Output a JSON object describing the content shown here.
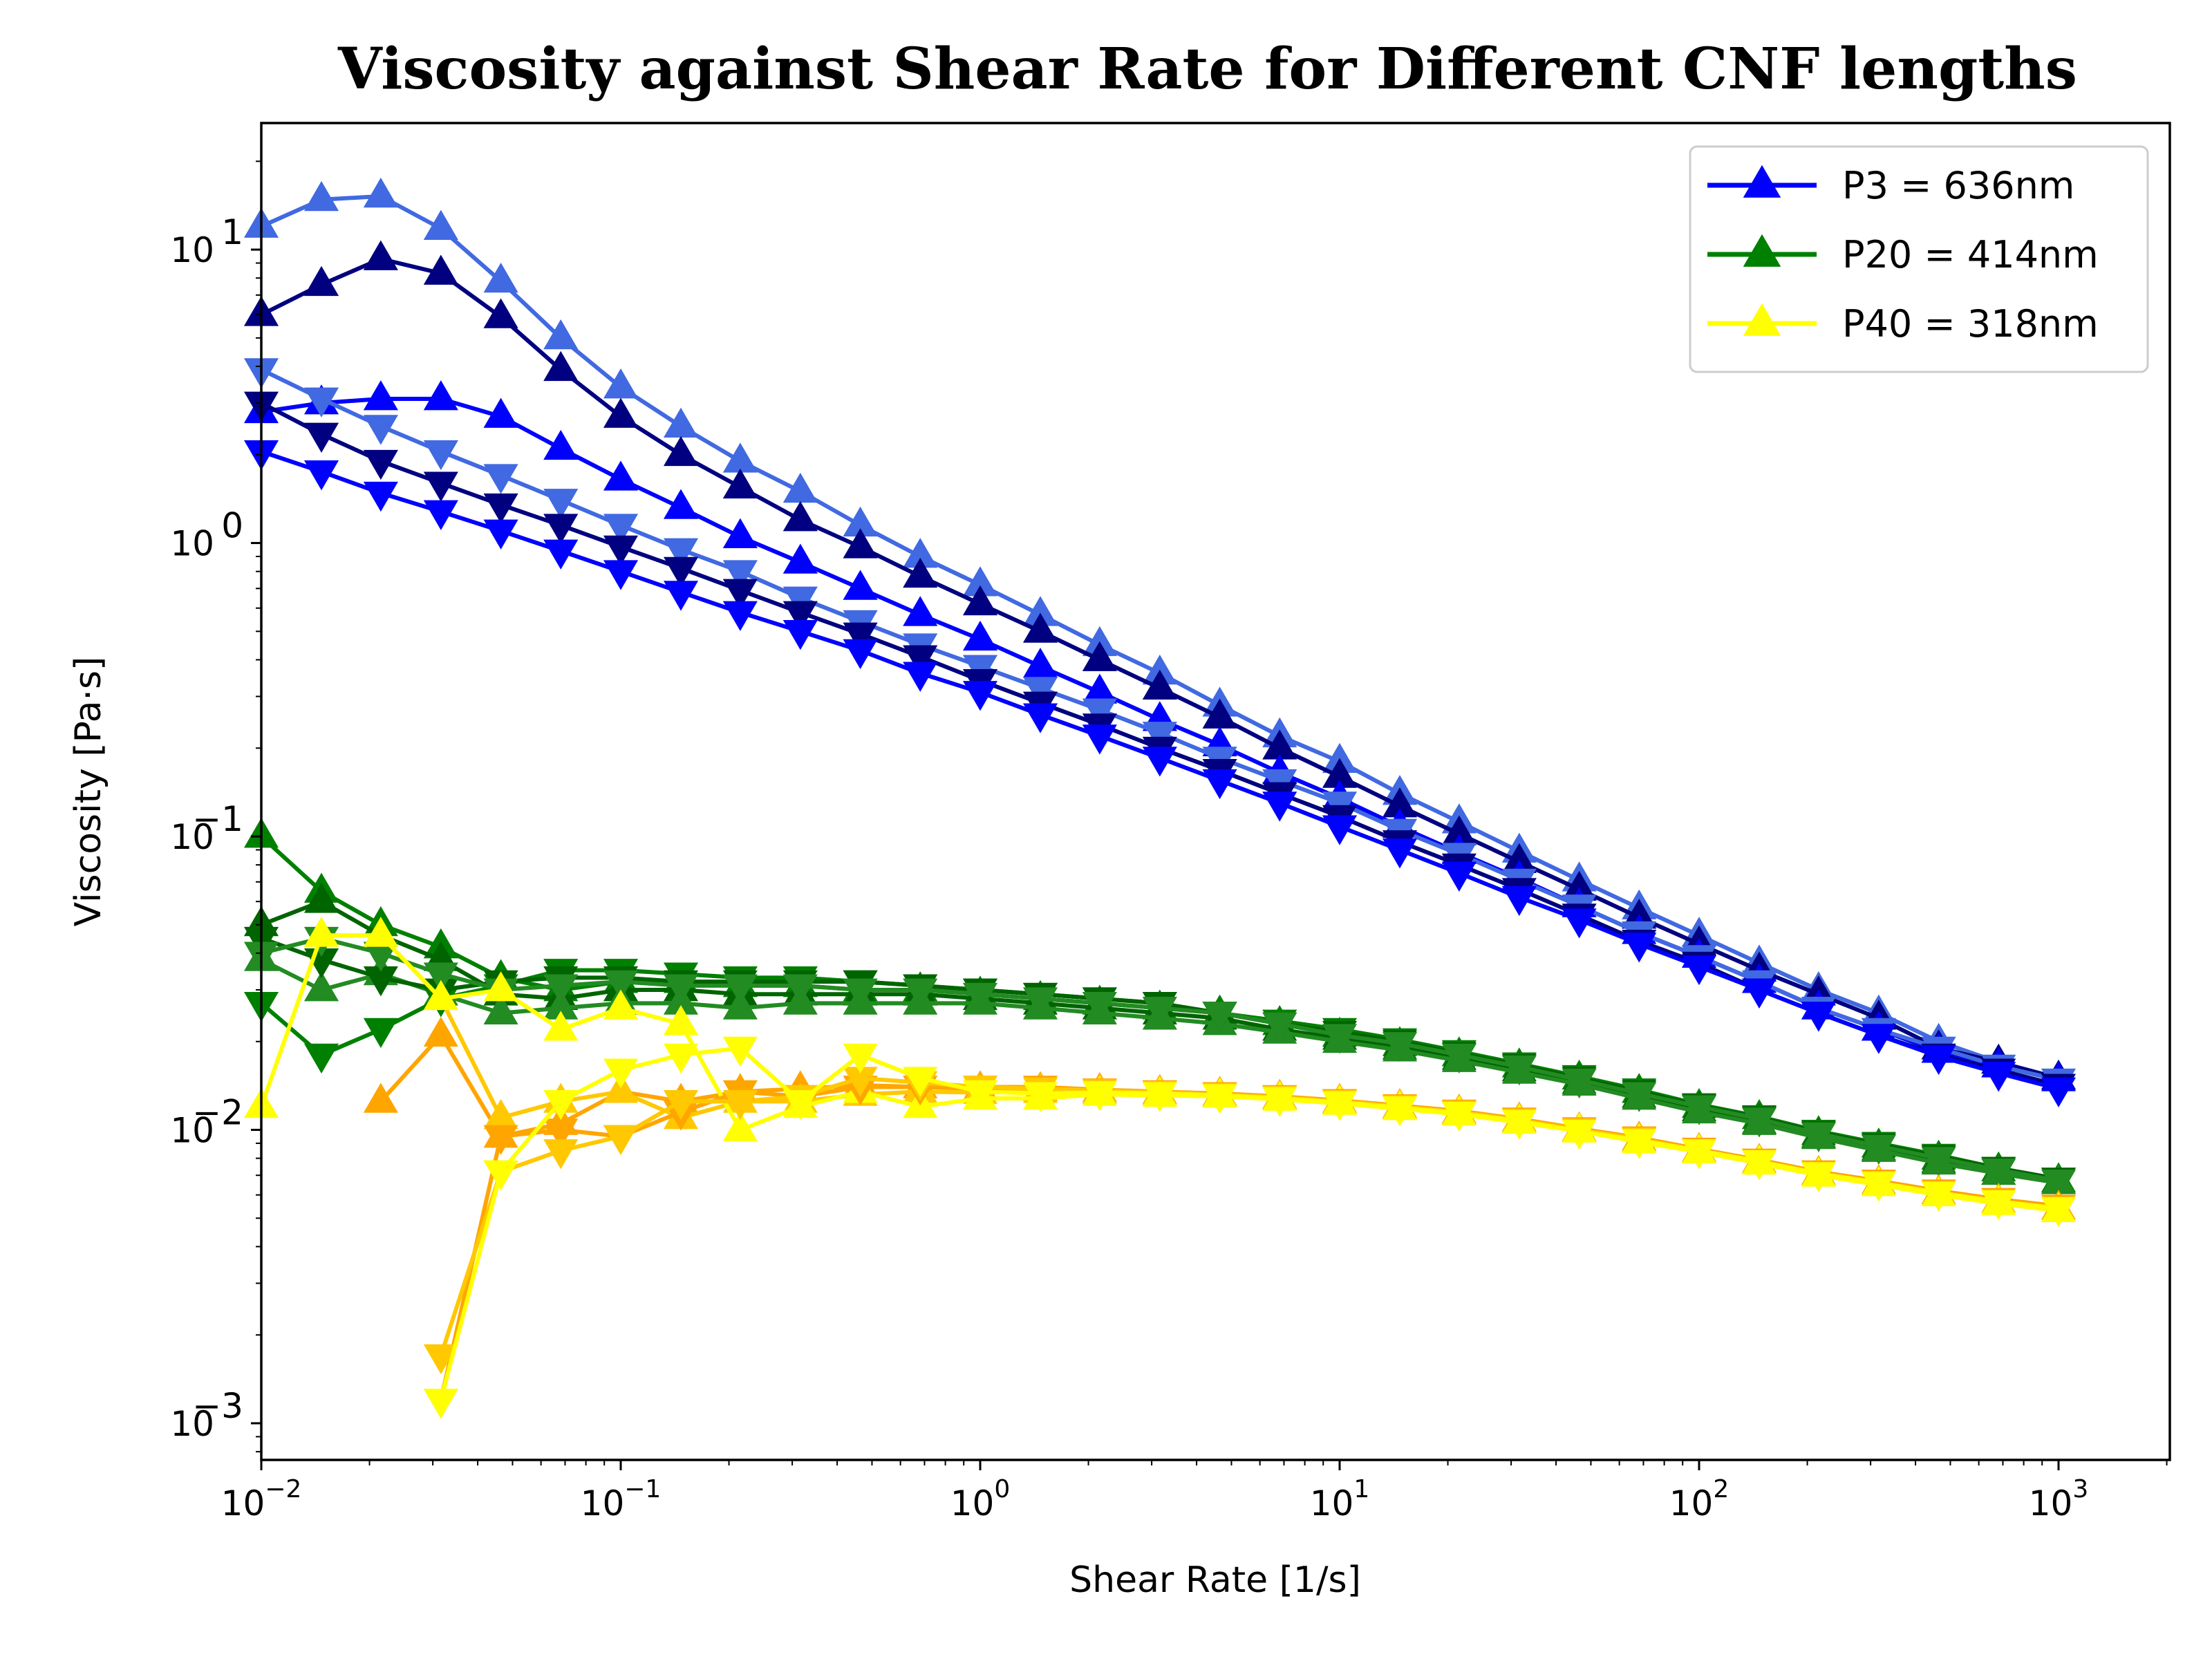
{
  "chart_data": {
    "type": "line",
    "title": "Viscosity against Shear Rate for Different CNF lengths",
    "xlabel": "Shear Rate [1/s]",
    "ylabel": "Viscosity [Pa·s]",
    "xscale": "log",
    "yscale": "log",
    "xlim": [
      0.01,
      2000
    ],
    "ylim": [
      0.00075,
      27
    ],
    "x_ticks": [
      {
        "value": 0.01,
        "base": "10",
        "exp": "−2"
      },
      {
        "value": 0.1,
        "base": "10",
        "exp": "−1"
      },
      {
        "value": 1,
        "base": "10",
        "exp": "0"
      },
      {
        "value": 10,
        "base": "10",
        "exp": "1"
      },
      {
        "value": 100,
        "base": "10",
        "exp": "2"
      },
      {
        "value": 1000,
        "base": "10",
        "exp": "3"
      }
    ],
    "y_ticks": [
      {
        "value": 0.001,
        "base": "10",
        "exp": "−3"
      },
      {
        "value": 0.01,
        "base": "10",
        "exp": "−2"
      },
      {
        "value": 0.1,
        "base": "10",
        "exp": "−1"
      },
      {
        "value": 1,
        "base": "10",
        "exp": "0"
      },
      {
        "value": 10,
        "base": "10",
        "exp": "1"
      }
    ],
    "grid": false,
    "legend_position": "top-right",
    "legend": [
      {
        "label": "P3 = 636nm",
        "color": "#0000ff",
        "marker": "triangle-up"
      },
      {
        "label": "P20 = 414nm",
        "color": "#008000",
        "marker": "triangle-up"
      },
      {
        "label": "P40 = 318nm",
        "color": "#ffff00",
        "marker": "triangle-up"
      }
    ],
    "x": [
      0.01,
      0.0147,
      0.0215,
      0.0316,
      0.0464,
      0.0681,
      0.1,
      0.147,
      0.215,
      0.316,
      0.464,
      0.681,
      1,
      1.47,
      2.15,
      3.16,
      4.64,
      6.81,
      10,
      14.7,
      21.5,
      31.6,
      46.4,
      68.1,
      100,
      147,
      215,
      316,
      464,
      681,
      1000
    ],
    "series": [
      {
        "group": "P3",
        "color": "#4169e1",
        "marker": "up",
        "values": [
          12,
          14.8,
          15.2,
          11.8,
          7.8,
          5,
          3.4,
          2.5,
          1.9,
          1.5,
          1.15,
          0.9,
          0.72,
          0.57,
          0.45,
          0.36,
          0.28,
          0.22,
          0.18,
          0.14,
          0.112,
          0.089,
          0.071,
          0.057,
          0.046,
          0.037,
          0.03,
          0.025,
          0.02,
          0.017,
          0.015
        ]
      },
      {
        "group": "P3",
        "color": "#000080",
        "marker": "up",
        "values": [
          6,
          7.6,
          9.3,
          8.3,
          5.9,
          3.9,
          2.7,
          2,
          1.55,
          1.2,
          0.97,
          0.77,
          0.62,
          0.5,
          0.4,
          0.32,
          0.255,
          0.2,
          0.16,
          0.127,
          0.102,
          0.082,
          0.066,
          0.053,
          0.043,
          0.035,
          0.029,
          0.024,
          0.019,
          0.017,
          0.015
        ]
      },
      {
        "group": "P3",
        "color": "#0000ff",
        "marker": "up",
        "values": [
          2.8,
          3,
          3.1,
          3.1,
          2.7,
          2.1,
          1.65,
          1.32,
          1.05,
          0.86,
          0.7,
          0.57,
          0.47,
          0.38,
          0.31,
          0.25,
          0.205,
          0.165,
          0.135,
          0.108,
          0.088,
          0.072,
          0.058,
          0.047,
          0.039,
          0.032,
          0.026,
          0.022,
          0.0185,
          0.0165,
          0.0148
        ]
      },
      {
        "group": "P3",
        "color": "#4169e1",
        "marker": "down",
        "values": [
          3.9,
          3.1,
          2.5,
          2.05,
          1.7,
          1.4,
          1.15,
          0.95,
          0.8,
          0.65,
          0.54,
          0.45,
          0.38,
          0.32,
          0.27,
          0.225,
          0.185,
          0.155,
          0.13,
          0.105,
          0.087,
          0.071,
          0.058,
          0.047,
          0.039,
          0.032,
          0.026,
          0.022,
          0.019,
          0.0165,
          0.0148
        ]
      },
      {
        "group": "P3",
        "color": "#000080",
        "marker": "down",
        "values": [
          3,
          2.35,
          1.9,
          1.6,
          1.35,
          1.15,
          0.97,
          0.82,
          0.69,
          0.58,
          0.49,
          0.41,
          0.34,
          0.285,
          0.24,
          0.2,
          0.168,
          0.14,
          0.117,
          0.096,
          0.08,
          0.066,
          0.054,
          0.044,
          0.037,
          0.03,
          0.025,
          0.021,
          0.018,
          0.016,
          0.0142
        ]
      },
      {
        "group": "P3",
        "color": "#0000ff",
        "marker": "down",
        "values": [
          2.05,
          1.75,
          1.48,
          1.28,
          1.1,
          0.94,
          0.8,
          0.68,
          0.58,
          0.5,
          0.43,
          0.36,
          0.31,
          0.26,
          0.22,
          0.185,
          0.155,
          0.13,
          0.108,
          0.09,
          0.075,
          0.062,
          0.052,
          0.043,
          0.036,
          0.03,
          0.025,
          0.021,
          0.0178,
          0.0156,
          0.0138
        ]
      },
      {
        "group": "P20",
        "color": "#008000",
        "marker": "up",
        "values": [
          0.1,
          0.065,
          0.05,
          0.042,
          0.033,
          0.03,
          0.032,
          0.032,
          0.031,
          0.031,
          0.03,
          0.03,
          0.029,
          0.028,
          0.027,
          0.026,
          0.025,
          0.023,
          0.021,
          0.0195,
          0.018,
          0.0165,
          0.015,
          0.0135,
          0.012,
          0.011,
          0.0097,
          0.0088,
          0.008,
          0.0073,
          0.0067
        ]
      },
      {
        "group": "P20",
        "color": "#006400",
        "marker": "up",
        "values": [
          0.05,
          0.06,
          0.046,
          0.038,
          0.029,
          0.028,
          0.03,
          0.03,
          0.029,
          0.029,
          0.029,
          0.029,
          0.028,
          0.027,
          0.026,
          0.025,
          0.024,
          0.022,
          0.0205,
          0.019,
          0.0175,
          0.016,
          0.0145,
          0.013,
          0.0117,
          0.0106,
          0.0095,
          0.0086,
          0.0078,
          0.0071,
          0.0066
        ]
      },
      {
        "group": "P20",
        "color": "#228b22",
        "marker": "up",
        "values": [
          0.038,
          0.03,
          0.034,
          0.029,
          0.025,
          0.026,
          0.027,
          0.027,
          0.026,
          0.027,
          0.027,
          0.027,
          0.027,
          0.026,
          0.025,
          0.024,
          0.023,
          0.0215,
          0.02,
          0.0187,
          0.0172,
          0.0157,
          0.0143,
          0.0128,
          0.0115,
          0.0105,
          0.0094,
          0.0085,
          0.0077,
          0.0071,
          0.0066
        ]
      },
      {
        "group": "P20",
        "color": "#008000",
        "marker": "down",
        "values": [
          0.027,
          0.018,
          0.022,
          0.028,
          0.031,
          0.035,
          0.035,
          0.034,
          0.033,
          0.033,
          0.032,
          0.031,
          0.03,
          0.029,
          0.028,
          0.027,
          0.025,
          0.0235,
          0.022,
          0.0203,
          0.0185,
          0.0168,
          0.0152,
          0.0137,
          0.0122,
          0.0111,
          0.0099,
          0.009,
          0.0082,
          0.0074,
          0.0068
        ]
      },
      {
        "group": "P20",
        "color": "#006400",
        "marker": "down",
        "values": [
          0.045,
          0.038,
          0.033,
          0.03,
          0.032,
          0.033,
          0.033,
          0.032,
          0.032,
          0.032,
          0.032,
          0.031,
          0.03,
          0.029,
          0.028,
          0.027,
          0.025,
          0.023,
          0.0215,
          0.02,
          0.0182,
          0.0166,
          0.015,
          0.0135,
          0.0121,
          0.011,
          0.0098,
          0.0089,
          0.0081,
          0.0074,
          0.0068
        ]
      },
      {
        "group": "P20",
        "color": "#228b22",
        "marker": "down",
        "values": [
          0.04,
          0.045,
          0.04,
          0.034,
          0.03,
          0.031,
          0.032,
          0.031,
          0.031,
          0.031,
          0.03,
          0.03,
          0.029,
          0.028,
          0.027,
          0.026,
          0.025,
          0.023,
          0.021,
          0.0197,
          0.018,
          0.0164,
          0.0148,
          0.0133,
          0.012,
          0.0109,
          0.0097,
          0.0088,
          0.008,
          0.0073,
          0.0067
        ]
      },
      {
        "group": "P40",
        "color": "#ffa500",
        "marker": "up",
        "values": [
          null,
          null,
          0.0125,
          0.021,
          0.0095,
          0.0105,
          0.0135,
          0.0125,
          0.0135,
          0.0138,
          0.0142,
          0.014,
          0.0138,
          0.0137,
          0.0136,
          0.0134,
          0.0132,
          0.0129,
          0.0125,
          0.012,
          0.0115,
          0.0108,
          0.01,
          0.0093,
          0.0085,
          0.0078,
          0.0071,
          0.0066,
          0.0061,
          0.0057,
          0.0054
        ]
      },
      {
        "group": "P40",
        "color": "#ffc800",
        "marker": "up",
        "values": [
          null,
          0.046,
          0.046,
          0.028,
          0.011,
          0.0125,
          0.0135,
          0.011,
          0.0125,
          0.0125,
          0.0132,
          0.0135,
          0.0134,
          0.0135,
          0.0134,
          0.0133,
          0.0131,
          0.0128,
          0.0124,
          0.0119,
          0.0114,
          0.0107,
          0.0099,
          0.0092,
          0.0084,
          0.0077,
          0.007,
          0.0065,
          0.006,
          0.0057,
          0.0053
        ]
      },
      {
        "group": "P40",
        "color": "#ffff00",
        "marker": "up",
        "values": [
          0.012,
          0.046,
          0.046,
          0.028,
          0.03,
          0.022,
          0.026,
          0.023,
          0.01,
          0.012,
          0.0135,
          0.012,
          0.0128,
          0.0128,
          0.0132,
          0.0131,
          0.013,
          0.0127,
          0.0123,
          0.0118,
          0.0113,
          0.0106,
          0.0099,
          0.0091,
          0.0084,
          0.0077,
          0.007,
          0.0065,
          0.006,
          0.0056,
          0.0053
        ]
      },
      {
        "group": "P40",
        "color": "#ffa500",
        "marker": "down",
        "values": [
          null,
          null,
          null,
          0.0012,
          0.0095,
          0.01,
          0.0095,
          0.0115,
          0.0135,
          0.013,
          0.014,
          0.014,
          0.014,
          0.014,
          0.0137,
          0.0135,
          0.0133,
          0.013,
          0.0126,
          0.0121,
          0.0116,
          0.0109,
          0.0101,
          0.0094,
          0.0086,
          0.0079,
          0.0072,
          0.0067,
          0.0062,
          0.0058,
          0.0055
        ]
      },
      {
        "group": "P40",
        "color": "#ffc800",
        "marker": "down",
        "values": [
          null,
          null,
          null,
          0.0017,
          0.0072,
          0.0085,
          0.0095,
          0.0125,
          0.0125,
          0.013,
          0.015,
          0.0145,
          0.014,
          0.0138,
          0.0136,
          0.0134,
          0.0132,
          0.0129,
          0.0125,
          0.012,
          0.0115,
          0.0108,
          0.01,
          0.0093,
          0.0085,
          0.0078,
          0.0071,
          0.0066,
          0.0061,
          0.0057,
          0.0054
        ]
      },
      {
        "group": "P40",
        "color": "#ffff00",
        "marker": "down",
        "values": [
          null,
          null,
          null,
          0.0012,
          0.0072,
          0.0125,
          0.016,
          0.018,
          0.019,
          0.0125,
          0.018,
          0.015,
          0.0135,
          0.0133,
          0.0134,
          0.0133,
          0.0131,
          0.0128,
          0.0124,
          0.0119,
          0.0114,
          0.0107,
          0.0099,
          0.0092,
          0.0085,
          0.0078,
          0.0071,
          0.0066,
          0.0061,
          0.0057,
          0.0054
        ]
      }
    ]
  }
}
